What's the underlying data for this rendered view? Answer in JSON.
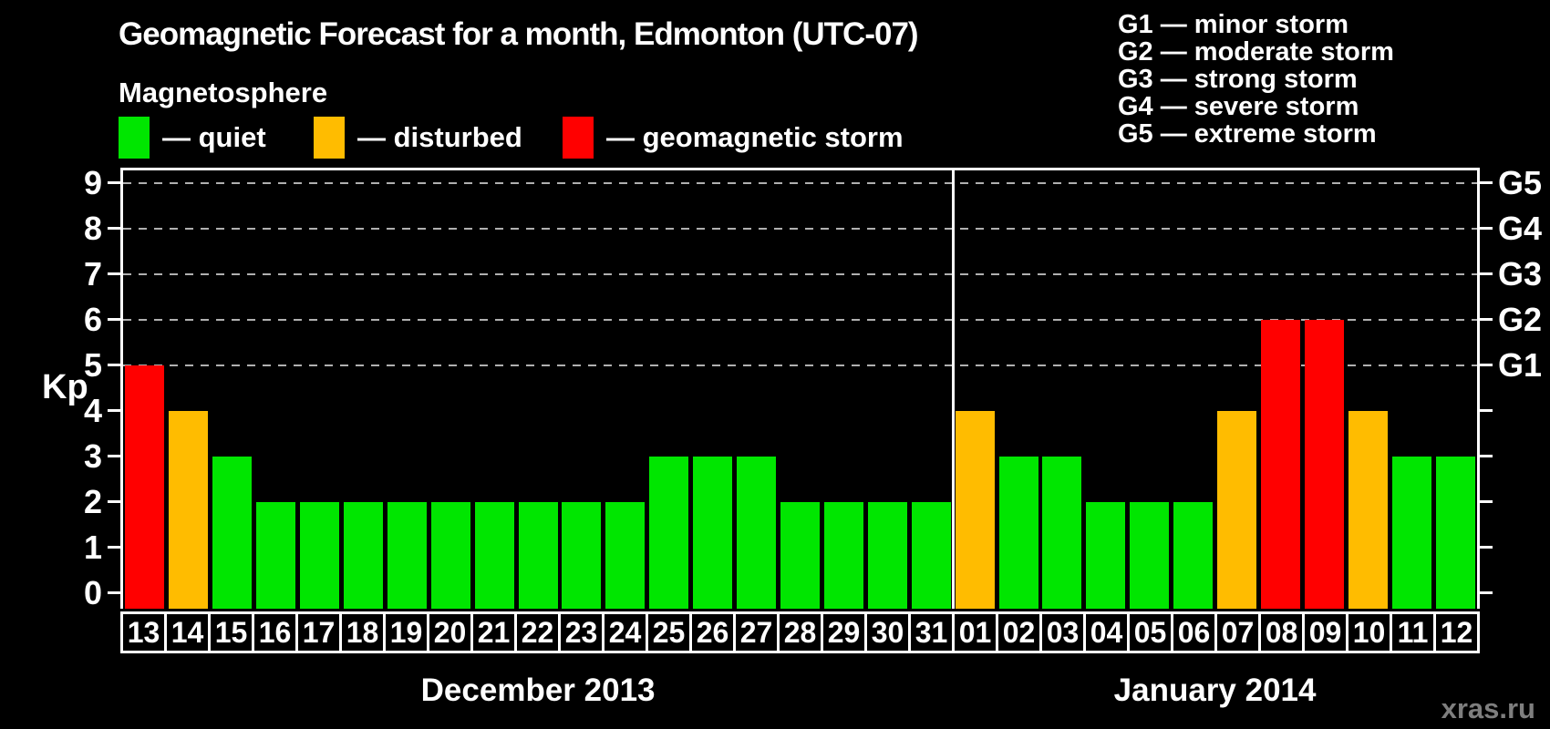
{
  "watermark": "xras.ru",
  "legend": {
    "heading": "Magnetosphere",
    "items": [
      {
        "status": "quiet",
        "label": "— quiet"
      },
      {
        "status": "disturbed",
        "label": "— disturbed"
      },
      {
        "status": "storm",
        "label": "— geomagnetic storm"
      }
    ]
  },
  "g_scale_legend": [
    "G1 — minor storm",
    "G2 — moderate storm",
    "G3 — strong storm",
    "G4 — severe storm",
    "G5 — extreme storm"
  ],
  "chart_data": {
    "type": "bar",
    "title": "Geomagnetic Forecast for a month, Edmonton (UTC-07)",
    "ylabel": "Kp",
    "ylim": [
      0,
      9
    ],
    "grid": "dashed horizontal lines at Kp 5-9",
    "legend_position": "top",
    "y_ticks": [
      0,
      1,
      2,
      3,
      4,
      5,
      6,
      7,
      8,
      9
    ],
    "right_axis": [
      {
        "kp": 5,
        "label": "G1"
      },
      {
        "kp": 6,
        "label": "G2"
      },
      {
        "kp": 7,
        "label": "G3"
      },
      {
        "kp": 8,
        "label": "G4"
      },
      {
        "kp": 9,
        "label": "G5"
      }
    ],
    "status_colors": {
      "quiet": "#00e600",
      "disturbed": "#ffbc00",
      "storm": "#ff0000"
    },
    "months": [
      {
        "label": "December 2013",
        "bars": [
          {
            "day": "13",
            "kp": 5,
            "status": "storm"
          },
          {
            "day": "14",
            "kp": 4,
            "status": "disturbed"
          },
          {
            "day": "15",
            "kp": 3,
            "status": "quiet"
          },
          {
            "day": "16",
            "kp": 2,
            "status": "quiet"
          },
          {
            "day": "17",
            "kp": 2,
            "status": "quiet"
          },
          {
            "day": "18",
            "kp": 2,
            "status": "quiet"
          },
          {
            "day": "19",
            "kp": 2,
            "status": "quiet"
          },
          {
            "day": "20",
            "kp": 2,
            "status": "quiet"
          },
          {
            "day": "21",
            "kp": 2,
            "status": "quiet"
          },
          {
            "day": "22",
            "kp": 2,
            "status": "quiet"
          },
          {
            "day": "23",
            "kp": 2,
            "status": "quiet"
          },
          {
            "day": "24",
            "kp": 2,
            "status": "quiet"
          },
          {
            "day": "25",
            "kp": 3,
            "status": "quiet"
          },
          {
            "day": "26",
            "kp": 3,
            "status": "quiet"
          },
          {
            "day": "27",
            "kp": 3,
            "status": "quiet"
          },
          {
            "day": "28",
            "kp": 2,
            "status": "quiet"
          },
          {
            "day": "29",
            "kp": 2,
            "status": "quiet"
          },
          {
            "day": "30",
            "kp": 2,
            "status": "quiet"
          },
          {
            "day": "31",
            "kp": 2,
            "status": "quiet"
          }
        ]
      },
      {
        "label": "January 2014",
        "bars": [
          {
            "day": "01",
            "kp": 4,
            "status": "disturbed"
          },
          {
            "day": "02",
            "kp": 3,
            "status": "quiet"
          },
          {
            "day": "03",
            "kp": 3,
            "status": "quiet"
          },
          {
            "day": "04",
            "kp": 2,
            "status": "quiet"
          },
          {
            "day": "05",
            "kp": 2,
            "status": "quiet"
          },
          {
            "day": "06",
            "kp": 2,
            "status": "quiet"
          },
          {
            "day": "07",
            "kp": 4,
            "status": "disturbed"
          },
          {
            "day": "08",
            "kp": 6,
            "status": "storm"
          },
          {
            "day": "09",
            "kp": 6,
            "status": "storm"
          },
          {
            "day": "10",
            "kp": 4,
            "status": "disturbed"
          },
          {
            "day": "11",
            "kp": 3,
            "status": "quiet"
          },
          {
            "day": "12",
            "kp": 3,
            "status": "quiet"
          }
        ]
      }
    ]
  }
}
